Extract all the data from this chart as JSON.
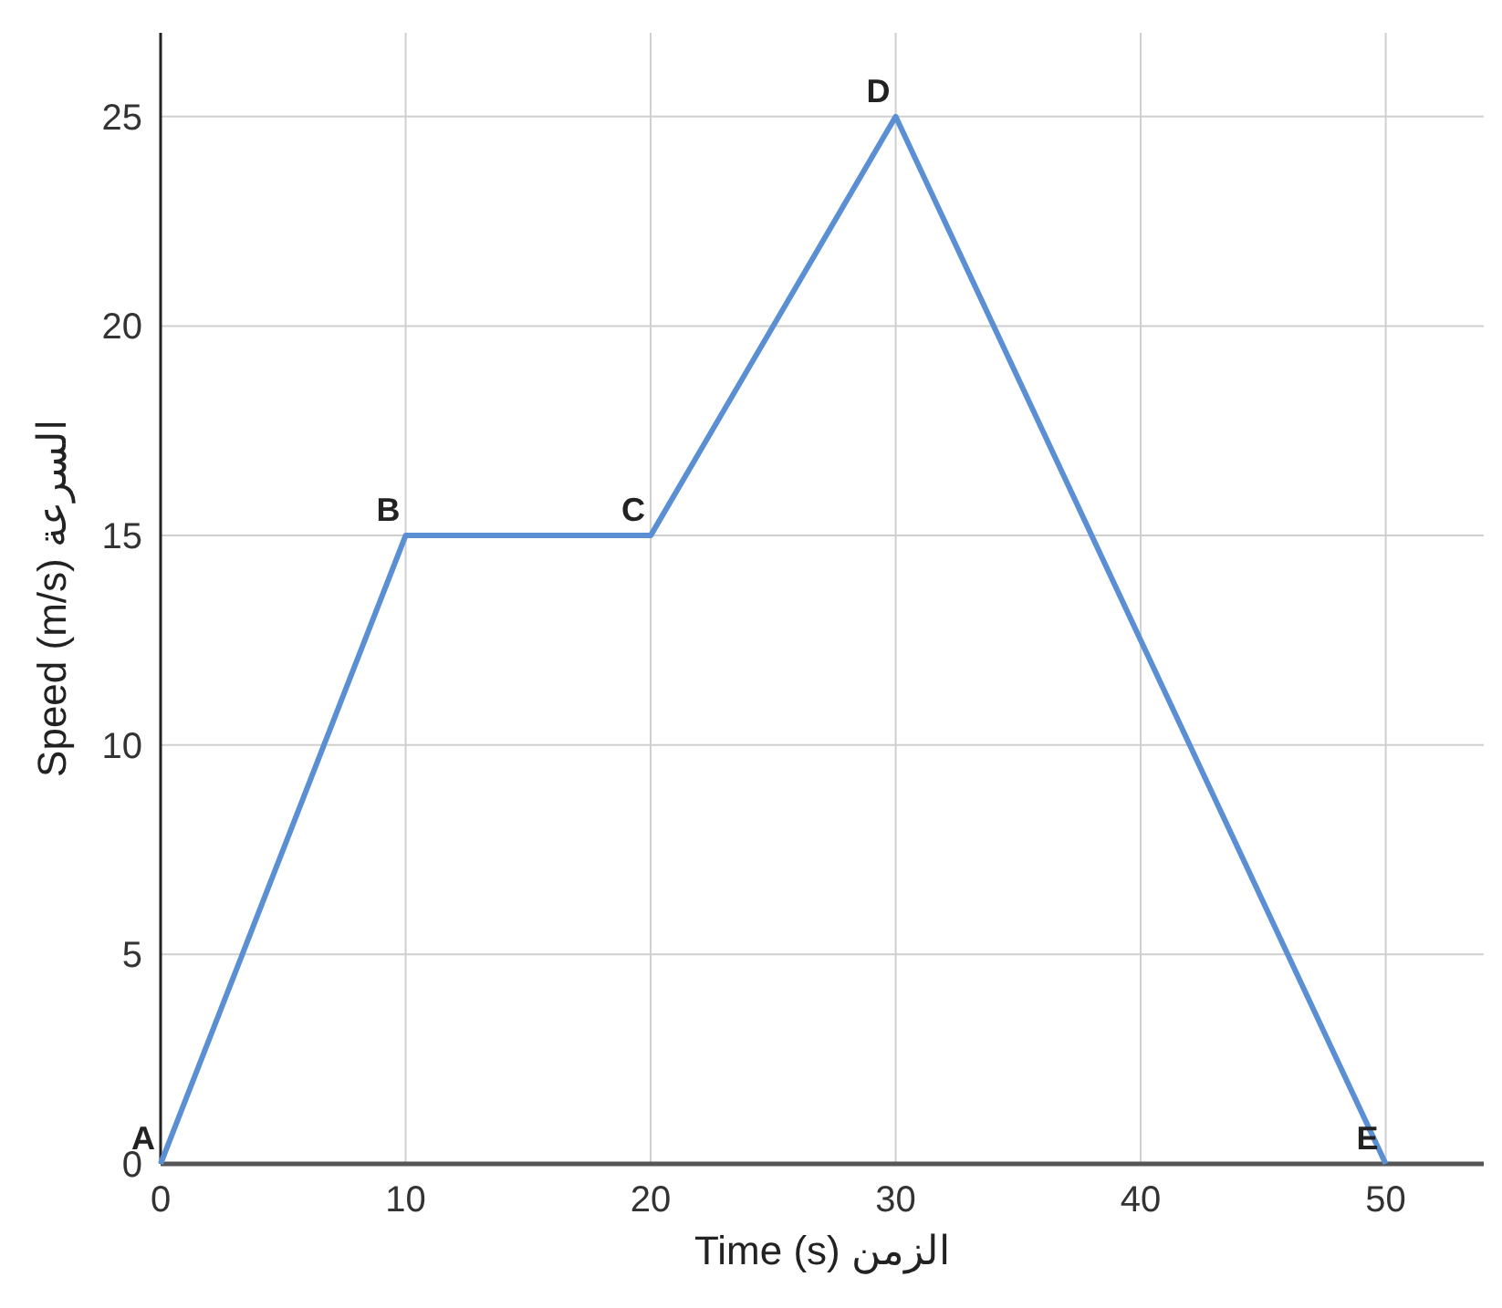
{
  "chart_data": {
    "type": "line",
    "xlabel": "Time (s) الزمن",
    "ylabel": "Speed (m/s) السرعة",
    "x": [
      0,
      10,
      20,
      30,
      50
    ],
    "series": [
      {
        "color": "#5b8fd4",
        "values": [
          0,
          15,
          15,
          25,
          0
        ]
      }
    ],
    "xlim": [
      0,
      54
    ],
    "ylim": [
      0,
      27
    ],
    "xticks": [
      0,
      10,
      20,
      30,
      40,
      50
    ],
    "yticks": [
      0,
      5,
      10,
      15,
      20,
      25
    ],
    "grid": true,
    "marker": "none",
    "line_style": "solid",
    "annotations": [
      {
        "text": "A",
        "x": 0,
        "y": 0
      },
      {
        "text": "B",
        "x": 10,
        "y": 15
      },
      {
        "text": "C",
        "x": 20,
        "y": 15
      },
      {
        "text": "D",
        "x": 30,
        "y": 25
      },
      {
        "text": "E",
        "x": 50,
        "y": 0
      }
    ]
  }
}
